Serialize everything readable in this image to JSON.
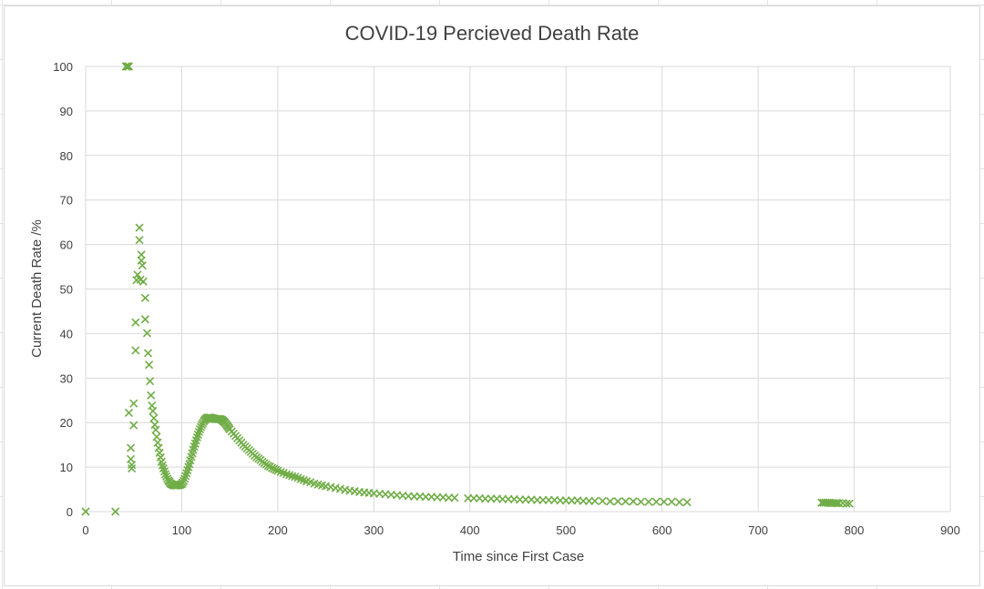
{
  "chart_data": {
    "type": "scatter",
    "title": "COVID-19 Percieved Death Rate",
    "xlabel": "Time since First Case",
    "ylabel": "Current Death Rate /%",
    "xlim": [
      0,
      900
    ],
    "ylim": [
      0,
      100
    ],
    "xticks": [
      "0",
      "100",
      "200",
      "300",
      "400",
      "500",
      "600",
      "700",
      "800",
      "900"
    ],
    "yticks": [
      "0",
      "10",
      "20",
      "30",
      "40",
      "50",
      "60",
      "70",
      "80",
      "90",
      "100"
    ],
    "grid": true,
    "legend": "none",
    "marker": "x",
    "color": "#70AD47",
    "series": [
      {
        "points": [
          [
            0,
            0
          ],
          [
            31,
            0
          ],
          [
            42,
            100
          ],
          [
            43,
            100
          ],
          [
            44,
            100
          ],
          [
            45,
            100
          ],
          [
            45,
            22.2
          ],
          [
            47,
            14.3
          ],
          [
            47,
            11.8
          ],
          [
            48,
            9.7
          ],
          [
            48,
            10.5
          ],
          [
            50,
            19.4
          ],
          [
            50,
            24.3
          ],
          [
            52,
            36.2
          ],
          [
            52,
            42.5
          ],
          [
            53,
            52
          ],
          [
            54,
            53.2
          ],
          [
            56,
            61
          ],
          [
            56,
            63.8
          ],
          [
            57,
            52.1
          ],
          [
            58,
            57.7
          ],
          [
            58,
            56.4
          ],
          [
            59,
            55.3
          ],
          [
            60,
            51.7
          ],
          [
            62,
            48
          ],
          [
            62,
            43.2
          ],
          [
            64,
            40.1
          ],
          [
            65,
            35.6
          ],
          [
            66,
            33
          ],
          [
            67,
            29.3
          ],
          [
            68,
            26.1
          ],
          [
            69,
            23.8
          ],
          [
            70,
            22.6
          ],
          [
            71,
            21
          ],
          [
            72,
            19.5
          ],
          [
            73,
            18.4
          ],
          [
            74,
            16.8
          ],
          [
            75,
            15.5
          ],
          [
            76,
            14.3
          ],
          [
            77,
            13.2
          ],
          [
            78,
            12.2
          ],
          [
            79,
            11.2
          ],
          [
            80,
            10.4
          ],
          [
            81,
            9.7
          ],
          [
            82,
            9
          ],
          [
            83,
            8.4
          ],
          [
            84,
            7.9
          ],
          [
            85,
            7.4
          ],
          [
            86,
            7
          ],
          [
            87,
            6.7
          ],
          [
            88,
            6.4
          ],
          [
            89,
            6.2
          ],
          [
            90,
            6.1
          ],
          [
            91,
            6
          ],
          [
            92,
            5.9
          ],
          [
            93,
            5.9
          ],
          [
            94,
            5.9
          ],
          [
            95,
            5.9
          ],
          [
            96,
            5.9
          ],
          [
            97,
            6
          ],
          [
            98,
            6
          ],
          [
            99,
            6.1
          ],
          [
            100,
            6.2
          ],
          [
            101,
            6.5
          ],
          [
            102,
            6.9
          ],
          [
            103,
            7.4
          ],
          [
            104,
            8
          ],
          [
            105,
            8.6
          ],
          [
            106,
            9.3
          ],
          [
            107,
            10
          ],
          [
            108,
            10.7
          ],
          [
            109,
            11.5
          ],
          [
            110,
            12.3
          ],
          [
            111,
            13.1
          ],
          [
            112,
            13.9
          ],
          [
            113,
            14.6
          ],
          [
            114,
            15.3
          ],
          [
            115,
            16
          ],
          [
            116,
            16.7
          ],
          [
            117,
            17.3
          ],
          [
            118,
            17.9
          ],
          [
            119,
            18.5
          ],
          [
            120,
            19
          ],
          [
            121,
            19.5
          ],
          [
            122,
            19.9
          ],
          [
            123,
            20.3
          ],
          [
            124,
            20.6
          ],
          [
            125,
            20.8
          ],
          [
            126,
            21
          ],
          [
            127,
            21.1
          ],
          [
            128,
            21.1
          ],
          [
            129,
            21.1
          ],
          [
            130,
            21.1
          ],
          [
            131,
            21
          ],
          [
            132,
            21
          ],
          [
            133,
            20.9
          ],
          [
            134,
            20.9
          ],
          [
            135,
            20.8
          ],
          [
            136,
            20.8
          ],
          [
            137,
            20.8
          ],
          [
            138,
            20.8
          ],
          [
            139,
            20.8
          ],
          [
            140,
            20.8
          ],
          [
            141,
            20.7
          ],
          [
            142,
            20.6
          ],
          [
            143,
            20.4
          ],
          [
            144,
            20.2
          ],
          [
            145,
            20
          ],
          [
            146,
            19.7
          ],
          [
            147,
            19.4
          ],
          [
            148,
            19.1
          ],
          [
            149,
            18.8
          ],
          [
            150,
            18.5
          ],
          [
            152,
            18
          ],
          [
            154,
            17.5
          ],
          [
            156,
            17
          ],
          [
            158,
            16.5
          ],
          [
            160,
            16
          ],
          [
            162,
            15.5
          ],
          [
            164,
            15
          ],
          [
            166,
            14.6
          ],
          [
            168,
            14.2
          ],
          [
            170,
            13.8
          ],
          [
            172,
            13.4
          ],
          [
            174,
            13
          ],
          [
            176,
            12.6
          ],
          [
            178,
            12.2
          ],
          [
            180,
            11.9
          ],
          [
            182,
            11.6
          ],
          [
            184,
            11.2
          ],
          [
            186,
            10.9
          ],
          [
            188,
            10.6
          ],
          [
            190,
            10.3
          ],
          [
            192,
            10.1
          ],
          [
            194,
            9.8
          ],
          [
            196,
            9.6
          ],
          [
            198,
            9.4
          ],
          [
            200,
            9.2
          ],
          [
            203,
            8.9
          ],
          [
            206,
            8.7
          ],
          [
            209,
            8.4
          ],
          [
            212,
            8.2
          ],
          [
            215,
            8
          ],
          [
            218,
            7.8
          ],
          [
            221,
            7.6
          ],
          [
            224,
            7.3
          ],
          [
            227,
            7.1
          ],
          [
            230,
            6.8
          ],
          [
            234,
            6.6
          ],
          [
            238,
            6.3
          ],
          [
            242,
            6.1
          ],
          [
            246,
            5.9
          ],
          [
            250,
            5.7
          ],
          [
            255,
            5.5
          ],
          [
            260,
            5.3
          ],
          [
            265,
            5.1
          ],
          [
            270,
            4.9
          ],
          [
            275,
            4.7
          ],
          [
            280,
            4.6
          ],
          [
            285,
            4.4
          ],
          [
            290,
            4.3
          ],
          [
            295,
            4.2
          ],
          [
            300,
            4.1
          ],
          [
            306,
            4
          ],
          [
            312,
            3.9
          ],
          [
            318,
            3.8
          ],
          [
            324,
            3.7
          ],
          [
            330,
            3.6
          ],
          [
            336,
            3.5
          ],
          [
            342,
            3.4
          ],
          [
            348,
            3.4
          ],
          [
            354,
            3.3
          ],
          [
            360,
            3.3
          ],
          [
            366,
            3.2
          ],
          [
            372,
            3.2
          ],
          [
            378,
            3.1
          ],
          [
            384,
            3.1
          ],
          [
            398,
            3
          ],
          [
            404,
            3
          ],
          [
            410,
            3
          ],
          [
            416,
            2.9
          ],
          [
            422,
            2.9
          ],
          [
            428,
            2.9
          ],
          [
            434,
            2.8
          ],
          [
            440,
            2.8
          ],
          [
            446,
            2.8
          ],
          [
            452,
            2.7
          ],
          [
            458,
            2.7
          ],
          [
            464,
            2.7
          ],
          [
            470,
            2.6
          ],
          [
            476,
            2.6
          ],
          [
            482,
            2.6
          ],
          [
            488,
            2.6
          ],
          [
            494,
            2.5
          ],
          [
            500,
            2.5
          ],
          [
            506,
            2.5
          ],
          [
            512,
            2.5
          ],
          [
            518,
            2.4
          ],
          [
            524,
            2.4
          ],
          [
            530,
            2.4
          ],
          [
            538,
            2.4
          ],
          [
            546,
            2.3
          ],
          [
            554,
            2.3
          ],
          [
            562,
            2.3
          ],
          [
            570,
            2.3
          ],
          [
            578,
            2.2
          ],
          [
            586,
            2.2
          ],
          [
            594,
            2.2
          ],
          [
            602,
            2.2
          ],
          [
            610,
            2.2
          ],
          [
            618,
            2.1
          ],
          [
            626,
            2.1
          ],
          [
            766,
            2
          ],
          [
            768,
            2
          ],
          [
            770,
            2
          ],
          [
            772,
            2
          ],
          [
            774,
            2
          ],
          [
            776,
            1.9
          ],
          [
            778,
            1.9
          ],
          [
            780,
            1.9
          ],
          [
            782,
            1.9
          ],
          [
            784,
            1.9
          ],
          [
            788,
            1.9
          ],
          [
            792,
            1.8
          ],
          [
            795,
            1.8
          ]
        ]
      }
    ]
  }
}
